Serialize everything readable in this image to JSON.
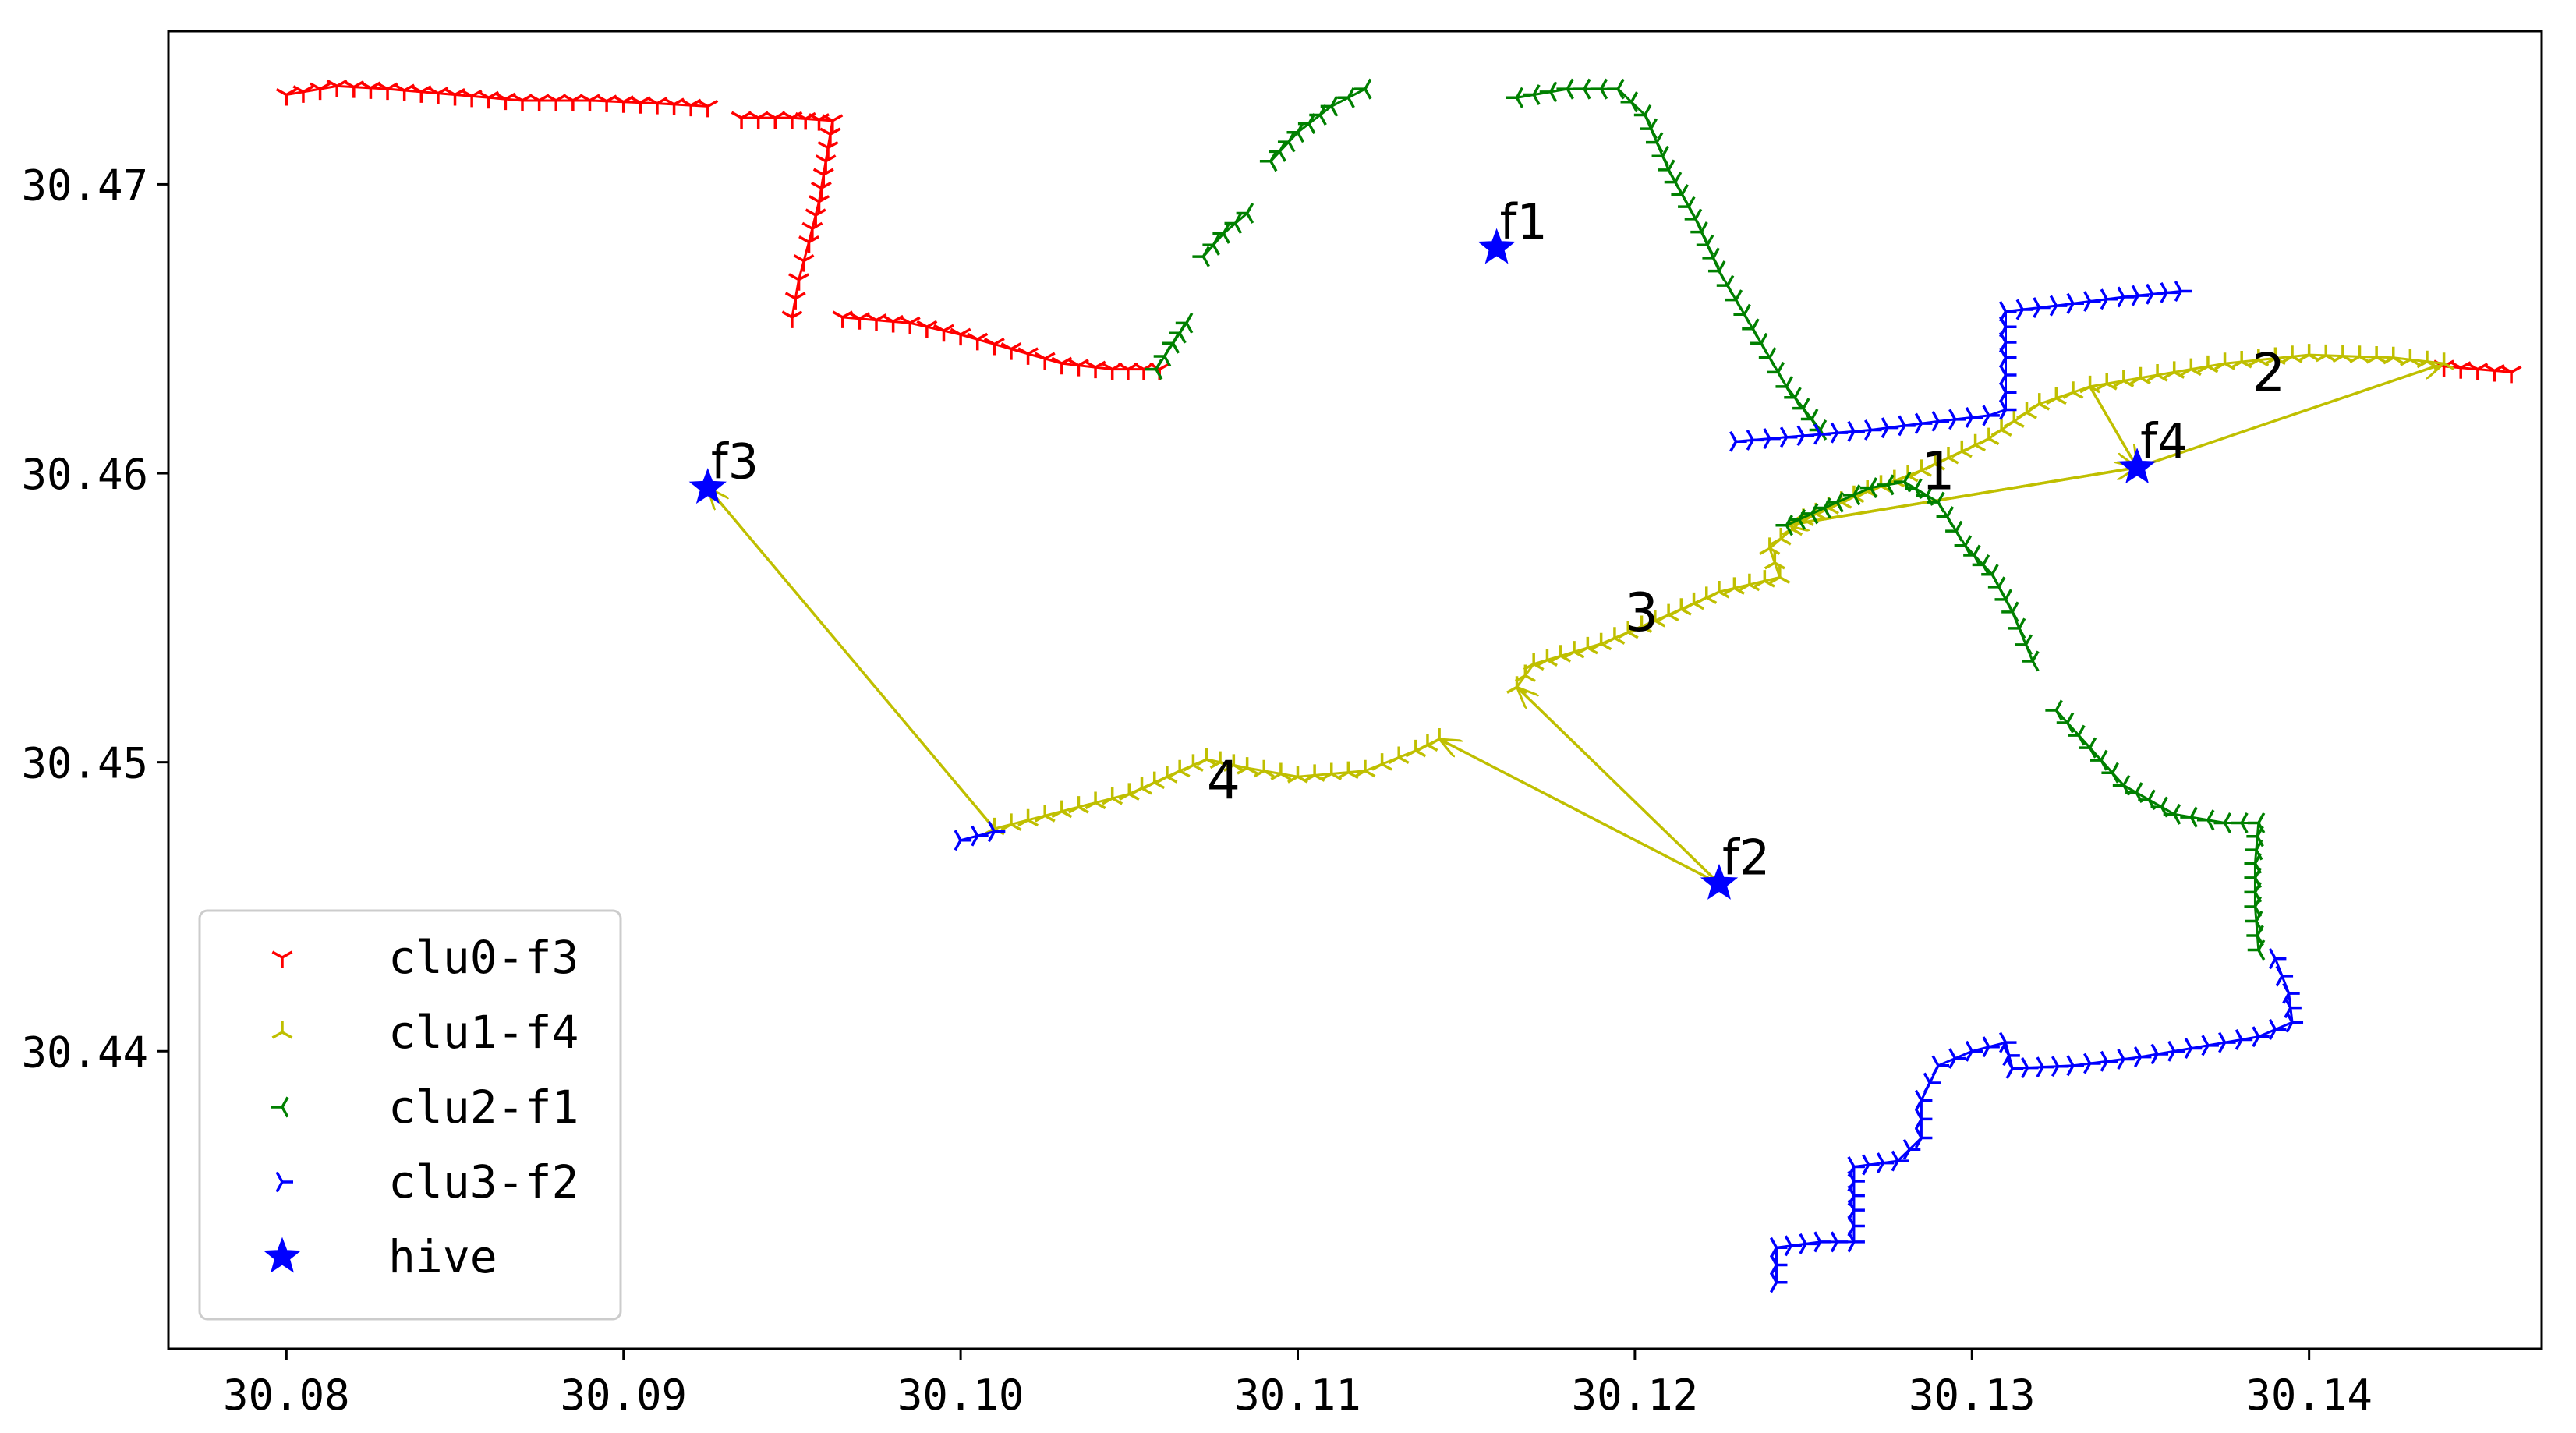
{
  "chart_data": {
    "type": "scatter",
    "title": "",
    "xlabel": "",
    "ylabel": "",
    "xlim": [
      30.0765,
      30.1469
    ],
    "ylim": [
      30.4297,
      30.4753
    ],
    "xticks": [
      30.08,
      30.09,
      30.1,
      30.11,
      30.12,
      30.13,
      30.14
    ],
    "xtick_labels": [
      "30.08",
      "30.09",
      "30.10",
      "30.11",
      "30.12",
      "30.13",
      "30.14"
    ],
    "yticks": [
      30.44,
      30.45,
      30.46,
      30.47
    ],
    "ytick_labels": [
      "30.44",
      "30.45",
      "30.46",
      "30.47"
    ],
    "grid": false,
    "legend_position": "bottom-left",
    "series": [
      {
        "name": "clu0-f3",
        "color": "#ff0000",
        "marker": "tri-down",
        "segments": [
          [
            [
              30.08,
              30.4731
            ],
            [
              30.0815,
              30.4734
            ],
            [
              30.083,
              30.4733
            ],
            [
              30.085,
              30.4731
            ],
            [
              30.087,
              30.4729
            ],
            [
              30.089,
              30.4729
            ],
            [
              30.091,
              30.4728
            ],
            [
              30.0925,
              30.4727
            ]
          ],
          [
            [
              30.0935,
              30.4723
            ],
            [
              30.095,
              30.4723
            ],
            [
              30.0962,
              30.4722
            ],
            [
              30.096,
              30.4708
            ],
            [
              30.0958,
              30.4694
            ],
            [
              30.0955,
              30.468
            ],
            [
              30.0952,
              30.4667
            ],
            [
              30.095,
              30.4654
            ]
          ],
          [
            [
              30.0965,
              30.4654
            ],
            [
              30.0985,
              30.4652
            ],
            [
              30.1,
              30.4648
            ],
            [
              30.1015,
              30.4643
            ],
            [
              30.103,
              30.4638
            ],
            [
              30.1045,
              30.4636
            ],
            [
              30.1059,
              30.4636
            ]
          ],
          [
            [
              30.144,
              30.4637
            ],
            [
              30.146,
              30.4635
            ]
          ]
        ]
      },
      {
        "name": "clu1-f4",
        "color": "#bfbf00",
        "marker": "tri-up",
        "segments": [
          [
            [
              30.101,
              30.4477
            ],
            [
              30.103,
              30.4483
            ],
            [
              30.105,
              30.4489
            ],
            [
              30.1065,
              30.4497
            ],
            [
              30.1073,
              30.4501
            ],
            [
              30.1085,
              30.4498
            ],
            [
              30.11,
              30.4495
            ],
            [
              30.112,
              30.4497
            ],
            [
              30.1135,
              30.4504
            ],
            [
              30.1142,
              30.4508
            ]
          ],
          [
            [
              30.1165,
              30.4526
            ],
            [
              30.117,
              30.4534
            ],
            [
              30.119,
              30.4541
            ],
            [
              30.121,
              30.4551
            ],
            [
              30.1225,
              30.4559
            ],
            [
              30.1243,
              30.4564
            ],
            [
              30.124,
              30.4574
            ],
            [
              30.125,
              30.4584
            ],
            [
              30.1265,
              30.4592
            ],
            [
              30.1285,
              30.4601
            ],
            [
              30.1305,
              30.4612
            ],
            [
              30.132,
              30.4624
            ],
            [
              30.1335,
              30.463
            ],
            [
              30.135,
              30.4633
            ],
            [
              30.1375,
              30.4638
            ],
            [
              30.14,
              30.4641
            ],
            [
              30.1425,
              30.464
            ],
            [
              30.144,
              30.4638
            ]
          ]
        ]
      },
      {
        "name": "clu2-f1",
        "color": "#008000",
        "marker": "tri-left",
        "segments": [
          [
            [
              30.1058,
              30.4636
            ],
            [
              30.1063,
              30.4645
            ],
            [
              30.1067,
              30.4652
            ]
          ],
          [
            [
              30.1072,
              30.4675
            ],
            [
              30.1078,
              30.4683
            ],
            [
              30.1085,
              30.469
            ]
          ],
          [
            [
              30.1092,
              30.4708
            ],
            [
              30.11,
              30.4718
            ],
            [
              30.111,
              30.4727
            ],
            [
              30.112,
              30.4733
            ]
          ],
          [
            [
              30.1165,
              30.473
            ],
            [
              30.118,
              30.4733
            ],
            [
              30.1195,
              30.4733
            ],
            [
              30.1203,
              30.4724
            ],
            [
              30.121,
              30.4705
            ],
            [
              30.1218,
              30.4688
            ],
            [
              30.1225,
              30.467
            ],
            [
              30.1235,
              30.465
            ],
            [
              30.1245,
              30.463
            ],
            [
              30.1255,
              30.4615
            ]
          ],
          [
            [
              30.1245,
              30.4582
            ],
            [
              30.126,
              30.459
            ],
            [
              30.127,
              30.4595
            ],
            [
              30.128,
              30.4597
            ],
            [
              30.129,
              30.459
            ],
            [
              30.1298,
              30.4575
            ],
            [
              30.1306,
              30.4565
            ],
            [
              30.1312,
              30.4552
            ],
            [
              30.1318,
              30.4535
            ]
          ],
          [
            [
              30.1325,
              30.4518
            ],
            [
              30.1335,
              30.4505
            ],
            [
              30.1345,
              30.4492
            ],
            [
              30.136,
              30.4482
            ],
            [
              30.1375,
              30.4479
            ],
            [
              30.1385,
              30.4479
            ],
            [
              30.1384,
              30.4465
            ],
            [
              30.1384,
              30.445
            ],
            [
              30.1385,
              30.4435
            ]
          ]
        ]
      },
      {
        "name": "clu3-f2",
        "color": "#0000ff",
        "marker": "tri-right",
        "segments": [
          [
            [
              30.1,
              30.4473
            ],
            [
              30.101,
              30.4476
            ]
          ],
          [
            [
              30.123,
              30.4611
            ],
            [
              30.125,
              30.4613
            ],
            [
              30.127,
              30.4615
            ],
            [
              30.129,
              30.4618
            ],
            [
              30.1305,
              30.462
            ],
            [
              30.131,
              30.4622
            ],
            [
              30.131,
              30.464
            ],
            [
              30.131,
              30.4656
            ],
            [
              30.1325,
              30.4658
            ],
            [
              30.1345,
              30.4661
            ],
            [
              30.1362,
              30.4663
            ]
          ],
          [
            [
              30.1242,
              30.432
            ],
            [
              30.1242,
              30.4332
            ],
            [
              30.1255,
              30.4334
            ],
            [
              30.1265,
              30.4334
            ],
            [
              30.1265,
              30.4345
            ],
            [
              30.1265,
              30.436
            ],
            [
              30.1278,
              30.4362
            ],
            [
              30.1285,
              30.437
            ],
            [
              30.1285,
              30.4383
            ],
            [
              30.129,
              30.4395
            ],
            [
              30.13,
              30.44
            ],
            [
              30.131,
              30.4403
            ],
            [
              30.1312,
              30.4394
            ],
            [
              30.133,
              30.4395
            ],
            [
              30.135,
              30.4398
            ],
            [
              30.137,
              30.4402
            ],
            [
              30.1385,
              30.4405
            ],
            [
              30.1395,
              30.441
            ],
            [
              30.1394,
              30.442
            ],
            [
              30.139,
              30.4432
            ]
          ]
        ]
      }
    ],
    "hive": {
      "name": "hive",
      "color": "#0000ff",
      "marker": "star",
      "points": [
        {
          "label": "f1",
          "x": 30.1159,
          "y": 30.4678
        },
        {
          "label": "f2",
          "x": 30.1225,
          "y": 30.4458
        },
        {
          "label": "f3",
          "x": 30.0925,
          "y": 30.4595
        },
        {
          "label": "f4",
          "x": 30.1349,
          "y": 30.4602
        }
      ]
    },
    "arrow_color": "#bfbf00",
    "arrows": [
      [
        [
          30.1159,
          30.4678
        ],
        [
          30.1159,
          30.4678
        ]
      ],
      [
        [
          30.1349,
          30.4602
        ],
        [
          30.1245,
          30.4582
        ]
      ],
      [
        [
          30.1245,
          30.4582
        ],
        [
          30.1349,
          30.4602
        ]
      ],
      [
        [
          30.1349,
          30.4602
        ],
        [
          30.144,
          30.4638
        ]
      ],
      [
        [
          30.1335,
          30.463
        ],
        [
          30.1349,
          30.4602
        ]
      ],
      [
        [
          30.1225,
          30.4458
        ],
        [
          30.1165,
          30.4526
        ]
      ],
      [
        [
          30.1225,
          30.4458
        ],
        [
          30.1142,
          30.4508
        ]
      ],
      [
        [
          30.101,
          30.4477
        ],
        [
          30.0925,
          30.4595
        ]
      ]
    ],
    "sequence_labels": [
      {
        "text": "1",
        "x": 30.129,
        "y": 30.4601
      },
      {
        "text": "2",
        "x": 30.1388,
        "y": 30.4635
      },
      {
        "text": "3",
        "x": 30.1202,
        "y": 30.4552
      },
      {
        "text": "4",
        "x": 30.1078,
        "y": 30.4494
      }
    ]
  }
}
